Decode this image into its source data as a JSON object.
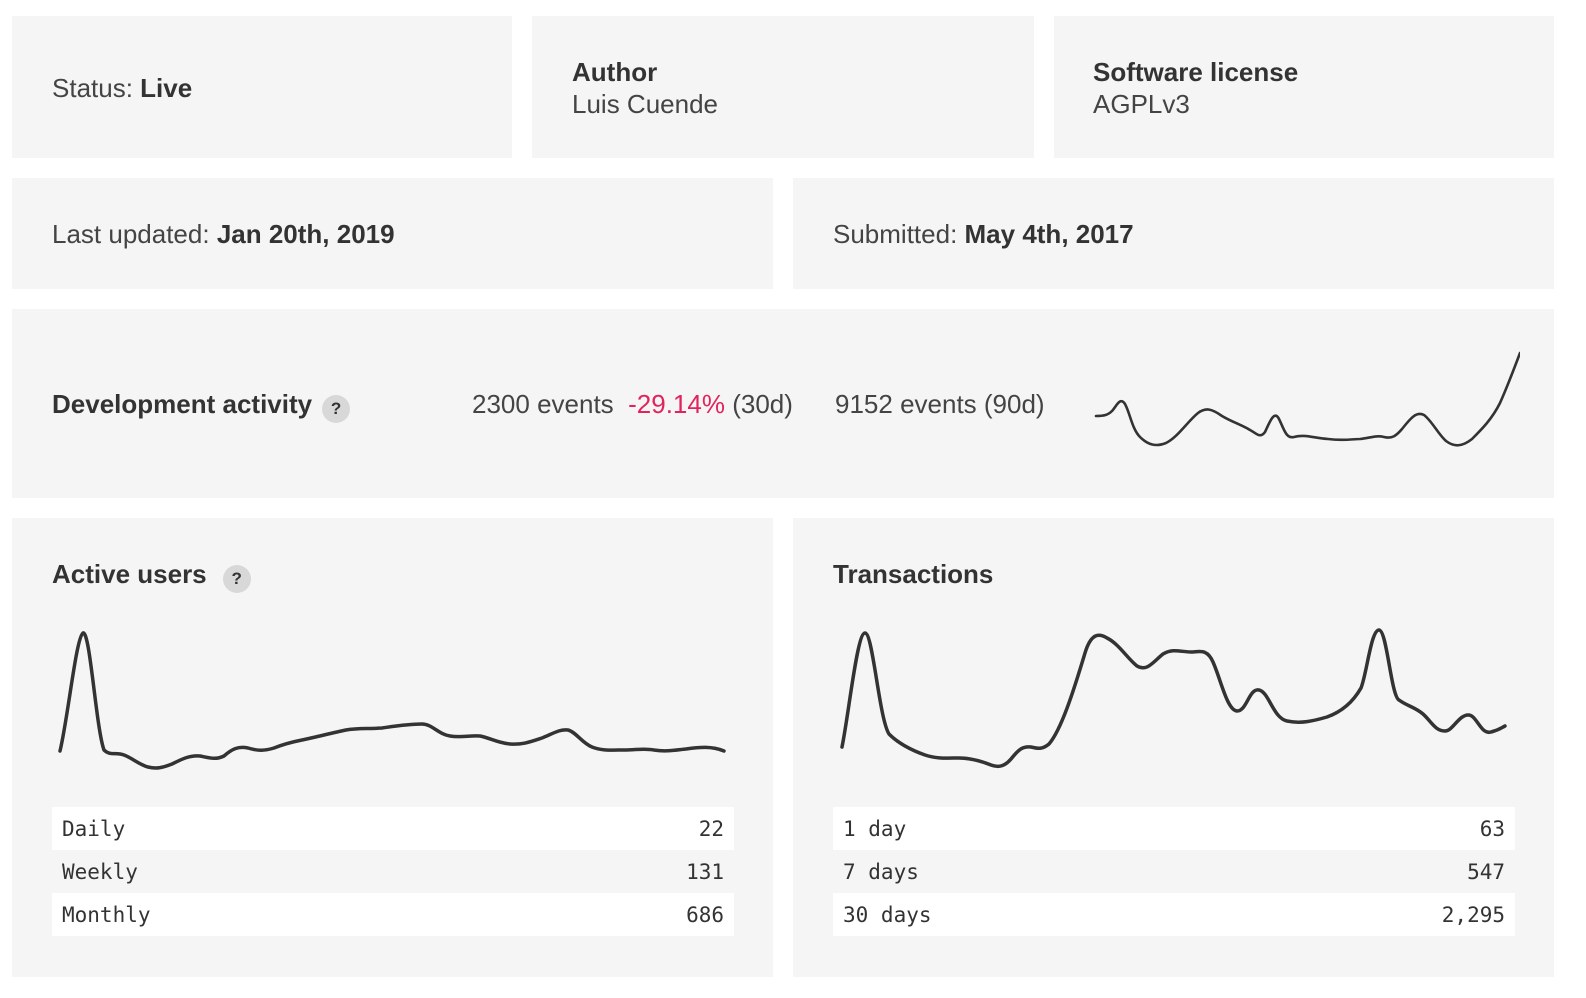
{
  "status": {
    "prefix": "Status: ",
    "value": "Live"
  },
  "author": {
    "label": "Author",
    "value": "Luis Cuende"
  },
  "license": {
    "label": "Software license",
    "value": "AGPLv3"
  },
  "last_updated": {
    "prefix": "Last updated: ",
    "value": "Jan 20th, 2019"
  },
  "submitted": {
    "prefix": "Submitted: ",
    "value": "May 4th, 2017"
  },
  "dev_activity": {
    "title": "Development activity",
    "help": "?",
    "events_30d": "2300 events",
    "change_30d": "-29.14%",
    "period_30d": "(30d)",
    "events_90d": "9152 events (90d)",
    "change_color": "#e0245e"
  },
  "active_users": {
    "title": "Active users",
    "help": "?",
    "stats": [
      {
        "label": "Daily",
        "value": "22"
      },
      {
        "label": "Weekly",
        "value": "131"
      },
      {
        "label": "Monthly",
        "value": "686"
      }
    ]
  },
  "transactions": {
    "title": "Transactions",
    "stats": [
      {
        "label": "1 day",
        "value": "63"
      },
      {
        "label": "7 days",
        "value": "547"
      },
      {
        "label": "30 days",
        "value": "2,295"
      }
    ]
  }
}
